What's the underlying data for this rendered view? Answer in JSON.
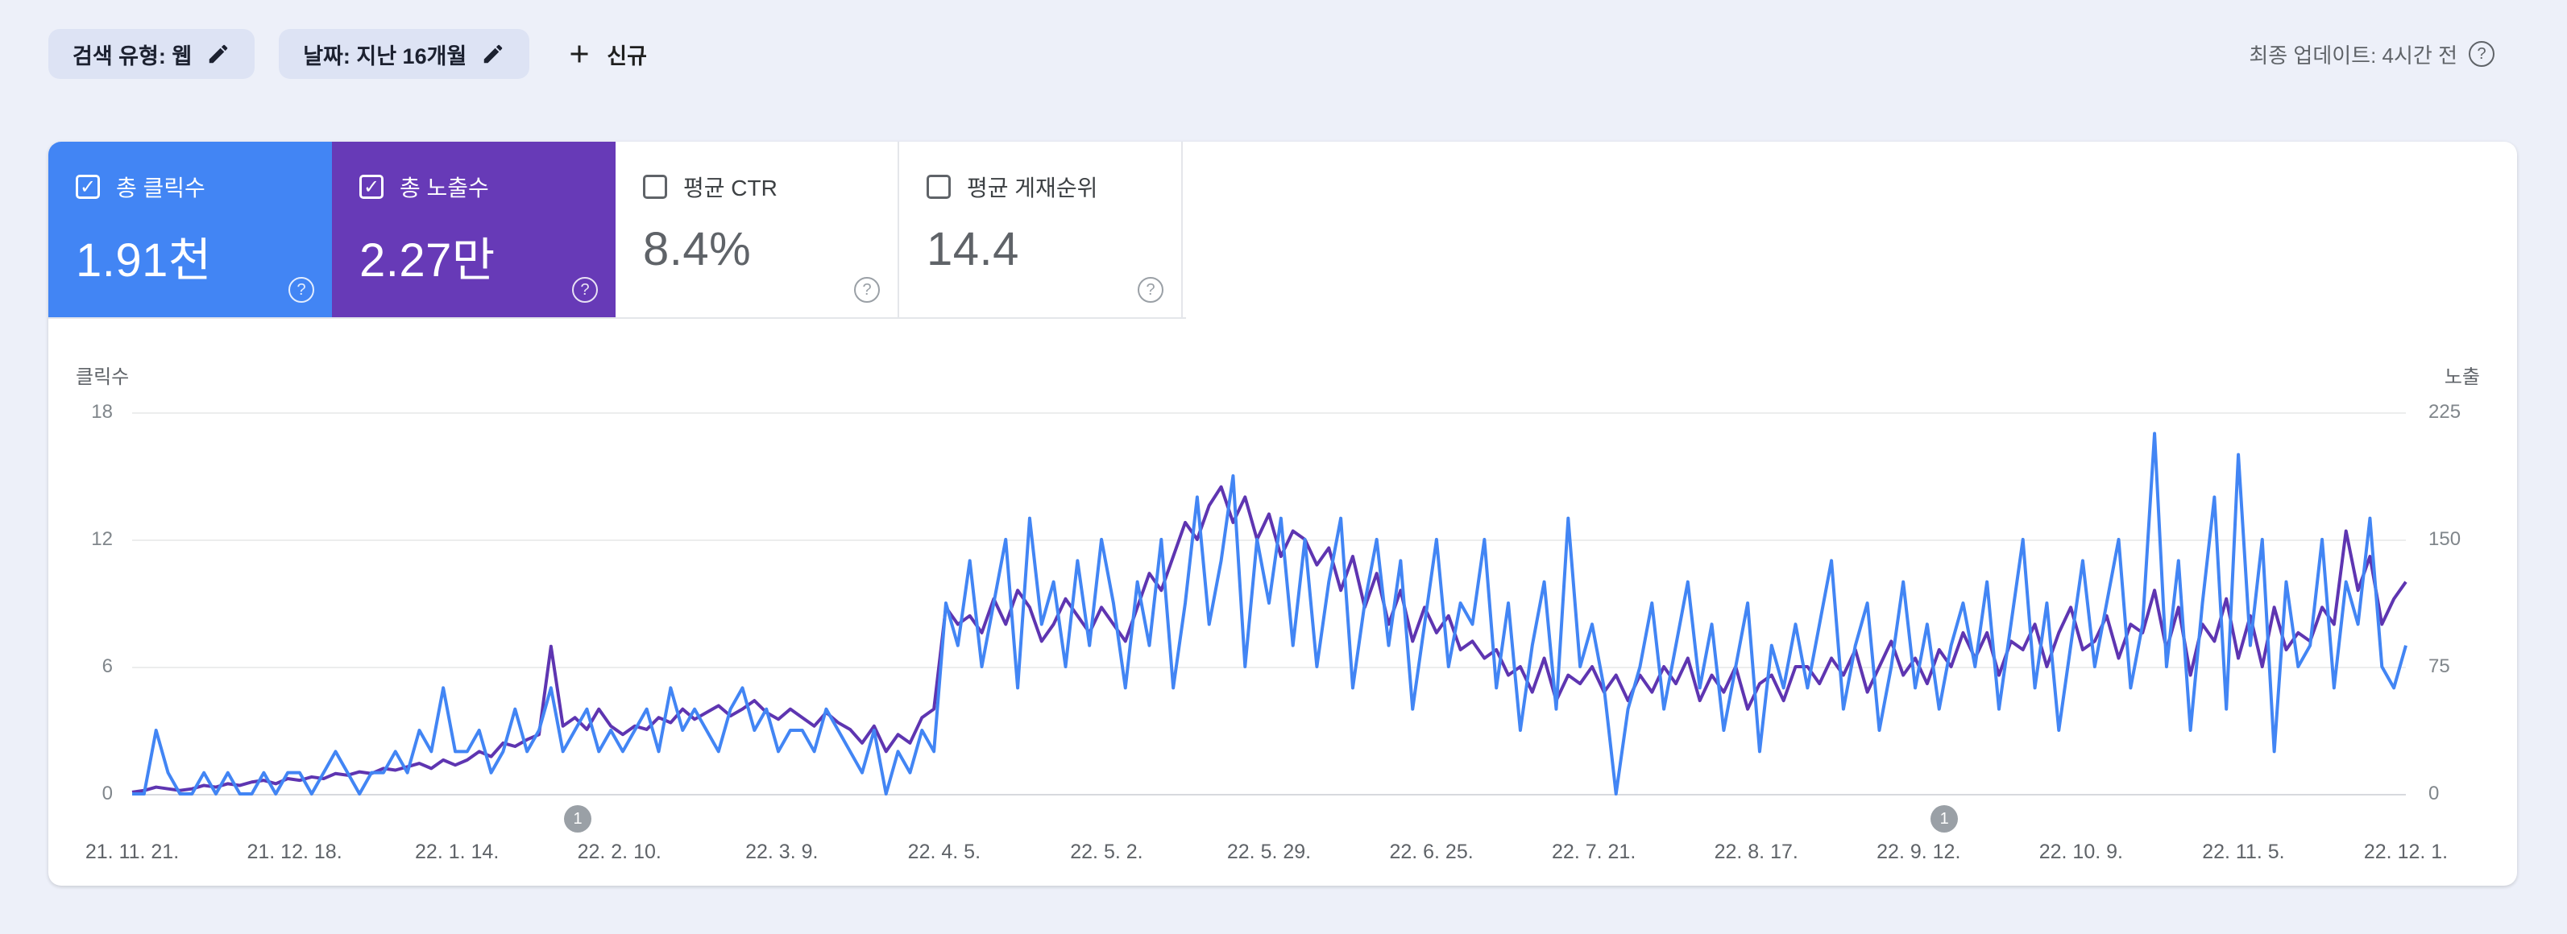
{
  "topbar": {
    "filters": [
      {
        "label": "검색 유형: 웹"
      },
      {
        "label": "날짜: 지난 16개월"
      }
    ],
    "new_button": "신규",
    "last_updated": "최종 업데이트: 4시간 전"
  },
  "metrics": [
    {
      "label": "총 클릭수",
      "value": "1.91천",
      "checked": true,
      "color": "#4285f4"
    },
    {
      "label": "총 노출수",
      "value": "2.27만",
      "checked": true,
      "color": "#673ab7"
    },
    {
      "label": "평균 CTR",
      "value": "8.4%",
      "checked": false
    },
    {
      "label": "평균 게재순위",
      "value": "14.4",
      "checked": false
    }
  ],
  "chart_data": {
    "type": "line",
    "left_axis": {
      "label": "클릭수",
      "max": 18,
      "ticks": [
        0,
        6,
        12,
        18
      ]
    },
    "right_axis": {
      "label": "노출",
      "max": 225,
      "ticks": [
        0,
        75,
        150,
        225
      ]
    },
    "x_labels": [
      "21. 11. 21.",
      "21. 12. 18.",
      "22. 1. 14.",
      "22. 2. 10.",
      "22. 3. 9.",
      "22. 4. 5.",
      "22. 5. 2.",
      "22. 5. 29.",
      "22. 6. 25.",
      "22. 7. 21.",
      "22. 8. 17.",
      "22. 9. 12.",
      "22. 10. 9.",
      "22. 11. 5.",
      "22. 12. 1."
    ],
    "annotations": [
      {
        "label": "1",
        "position": 0.196
      },
      {
        "label": "1",
        "position": 0.797
      }
    ],
    "series": [
      {
        "name": "총 클릭수",
        "axis": "left",
        "color": "#4285f4",
        "values": [
          0,
          0,
          3,
          1,
          0,
          0,
          1,
          0,
          1,
          0,
          0,
          1,
          0,
          1,
          1,
          0,
          1,
          2,
          1,
          0,
          1,
          1,
          2,
          1,
          3,
          2,
          5,
          2,
          2,
          3,
          1,
          2,
          4,
          2,
          3,
          5,
          2,
          3,
          4,
          2,
          3,
          2,
          3,
          4,
          2,
          5,
          3,
          4,
          3,
          2,
          4,
          5,
          3,
          4,
          2,
          3,
          3,
          2,
          4,
          3,
          2,
          1,
          3,
          0,
          2,
          1,
          3,
          2,
          9,
          7,
          11,
          6,
          9,
          12,
          5,
          13,
          8,
          10,
          6,
          11,
          7,
          12,
          9,
          5,
          10,
          7,
          12,
          5,
          9,
          14,
          8,
          11,
          15,
          6,
          12,
          9,
          13,
          7,
          12,
          6,
          10,
          13,
          5,
          9,
          12,
          7,
          11,
          4,
          8,
          12,
          6,
          9,
          8,
          12,
          5,
          9,
          3,
          7,
          10,
          4,
          13,
          6,
          8,
          5,
          0,
          4,
          6,
          9,
          4,
          7,
          10,
          5,
          8,
          3,
          6,
          9,
          2,
          7,
          5,
          8,
          5,
          8,
          11,
          4,
          7,
          9,
          3,
          6,
          10,
          5,
          8,
          4,
          7,
          9,
          6,
          10,
          4,
          8,
          12,
          5,
          9,
          3,
          7,
          11,
          6,
          9,
          12,
          5,
          8,
          17,
          6,
          11,
          3,
          9,
          14,
          4,
          16,
          7,
          12,
          2,
          10,
          6,
          7,
          12,
          5,
          10,
          8,
          13,
          6,
          5,
          7
        ]
      },
      {
        "name": "총 노출수",
        "axis": "right",
        "color": "#5e35b1",
        "values": [
          1,
          2,
          4,
          3,
          2,
          3,
          5,
          4,
          6,
          5,
          7,
          8,
          6,
          9,
          8,
          10,
          9,
          12,
          11,
          13,
          12,
          15,
          14,
          16,
          18,
          15,
          20,
          17,
          20,
          25,
          22,
          30,
          28,
          32,
          35,
          87,
          40,
          45,
          38,
          50,
          40,
          35,
          40,
          38,
          45,
          42,
          50,
          44,
          48,
          52,
          46,
          50,
          55,
          48,
          44,
          50,
          45,
          40,
          48,
          42,
          38,
          30,
          40,
          25,
          35,
          30,
          45,
          50,
          110,
          100,
          105,
          95,
          115,
          100,
          120,
          110,
          90,
          100,
          115,
          105,
          95,
          110,
          100,
          90,
          110,
          130,
          120,
          140,
          160,
          150,
          170,
          181,
          160,
          175,
          150,
          165,
          140,
          155,
          150,
          135,
          145,
          120,
          140,
          110,
          130,
          100,
          120,
          90,
          110,
          95,
          105,
          85,
          90,
          80,
          85,
          70,
          75,
          60,
          80,
          55,
          70,
          65,
          75,
          60,
          70,
          55,
          70,
          60,
          75,
          65,
          80,
          55,
          70,
          60,
          75,
          50,
          65,
          70,
          55,
          75,
          75,
          65,
          80,
          70,
          85,
          60,
          75,
          90,
          70,
          80,
          65,
          85,
          75,
          95,
          80,
          95,
          70,
          90,
          85,
          100,
          75,
          95,
          110,
          85,
          90,
          105,
          80,
          100,
          95,
          120,
          85,
          110,
          70,
          100,
          90,
          115,
          80,
          105,
          75,
          110,
          85,
          95,
          90,
          110,
          100,
          155,
          120,
          140,
          100,
          115,
          125
        ]
      }
    ]
  }
}
